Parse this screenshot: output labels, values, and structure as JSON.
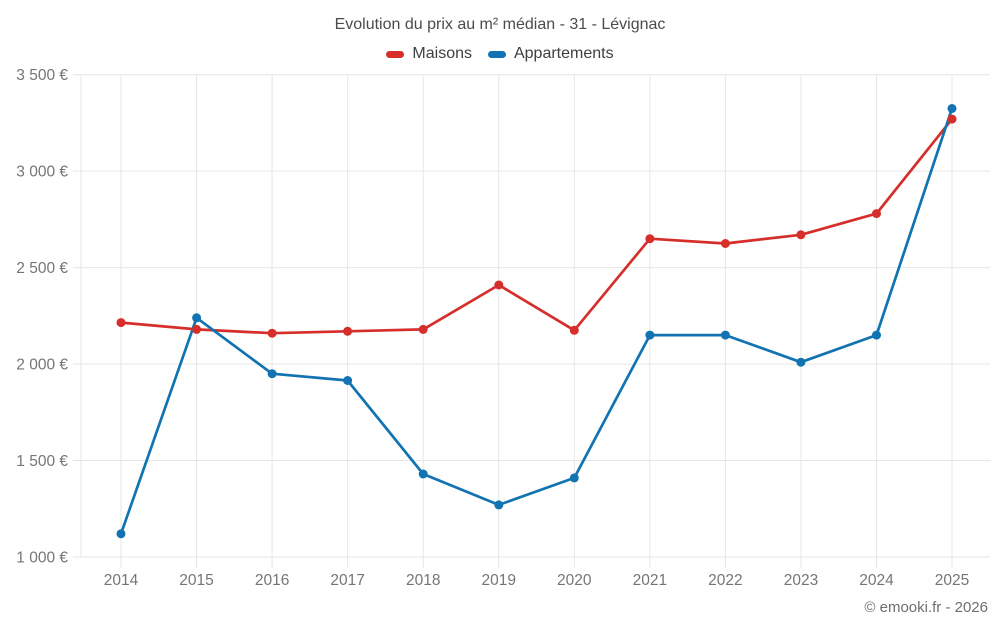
{
  "page": {
    "footer": "© emooki.fr - 2026"
  },
  "chart_data": {
    "type": "line",
    "title": "Evolution du prix au m² médian - 31 - Lévignac",
    "x": [
      2014,
      2015,
      2016,
      2017,
      2018,
      2019,
      2020,
      2021,
      2022,
      2023,
      2024,
      2025
    ],
    "series": [
      {
        "name": "Maisons",
        "color": "#d62f2b",
        "values": [
          2215,
          2180,
          2160,
          2170,
          2180,
          2410,
          2175,
          2650,
          2625,
          2670,
          2780,
          3270
        ]
      },
      {
        "name": "Appartements",
        "color": "#1173b2",
        "values": [
          1120,
          2240,
          1950,
          1915,
          1430,
          1270,
          1410,
          2150,
          2150,
          2010,
          2150,
          3325
        ]
      }
    ],
    "ylim": [
      1000,
      3500
    ],
    "yticks": [
      1000,
      1500,
      2000,
      2500,
      3000,
      3500
    ],
    "ytick_labels": [
      "1 000 €",
      "1 500 €",
      "2 000 €",
      "2 500 €",
      "3 000 €",
      "3 500 €"
    ],
    "xlabel": "",
    "ylabel": "",
    "grid": true,
    "legend_position": "top",
    "grid_color": "#e6e6e6",
    "text_color": "#757575"
  }
}
